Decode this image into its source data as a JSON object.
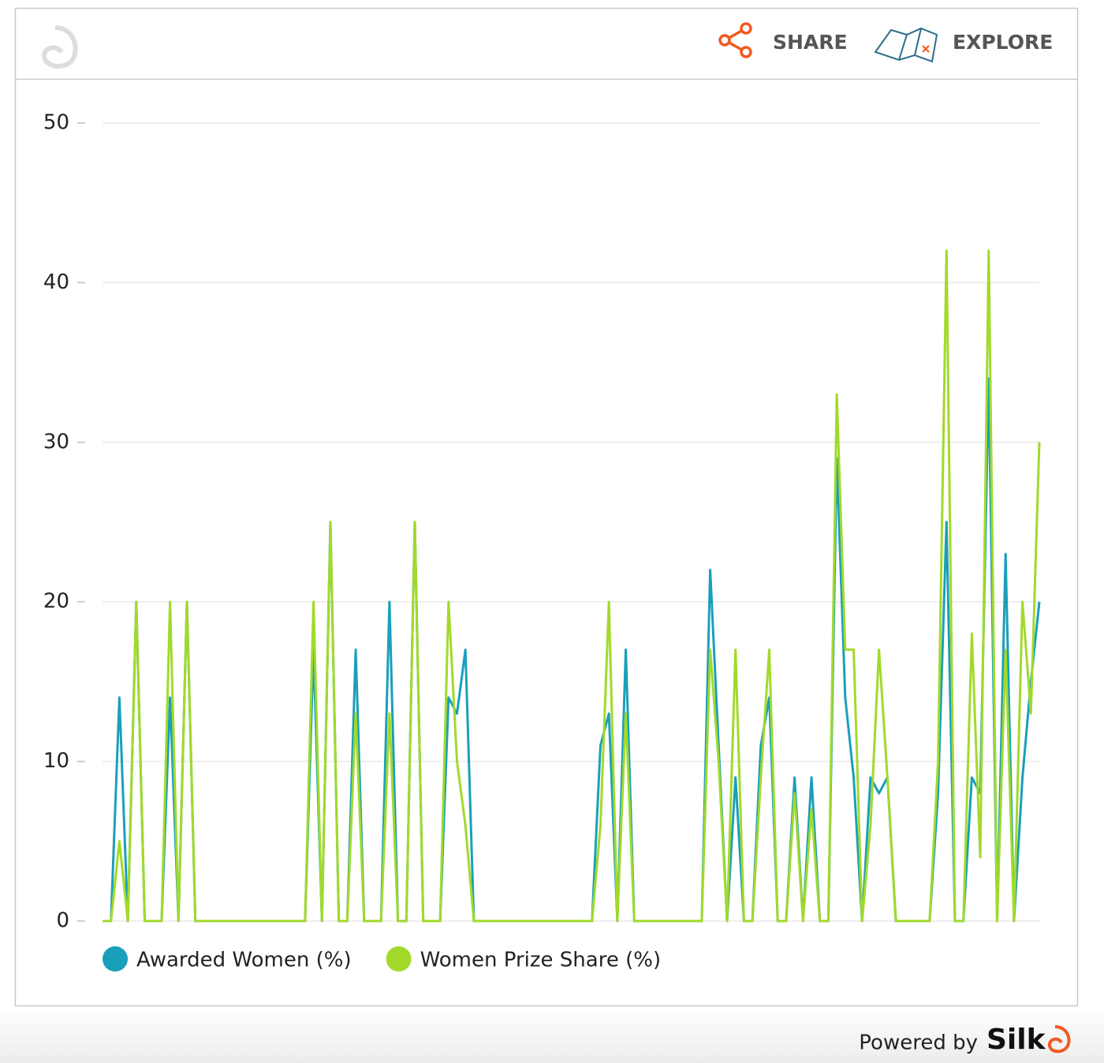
{
  "chart_data": {
    "type": "line",
    "ylim": [
      0,
      50
    ],
    "yticks": [
      0,
      10,
      20,
      30,
      40,
      50
    ],
    "grid": true,
    "series": [
      {
        "name": "Awarded Women (%)",
        "color": "#1a9fba",
        "values": [
          0,
          0,
          14,
          0,
          20,
          0,
          0,
          0,
          14,
          0,
          20,
          0,
          0,
          0,
          0,
          0,
          0,
          0,
          0,
          0,
          0,
          0,
          0,
          0,
          0,
          17,
          0,
          25,
          0,
          0,
          17,
          0,
          0,
          0,
          20,
          0,
          0,
          25,
          0,
          0,
          0,
          14,
          13,
          17,
          0,
          0,
          0,
          0,
          0,
          0,
          0,
          0,
          0,
          0,
          0,
          0,
          0,
          0,
          0,
          11,
          13,
          0,
          17,
          0,
          0,
          0,
          0,
          0,
          0,
          0,
          0,
          0,
          22,
          11,
          0,
          9,
          0,
          0,
          11,
          14,
          0,
          0,
          9,
          0,
          9,
          0,
          0,
          29,
          14,
          9,
          0,
          9,
          8,
          9,
          0,
          0,
          0,
          0,
          0,
          8,
          25,
          0,
          0,
          9,
          8,
          34,
          0,
          23,
          0,
          9,
          15,
          20
        ]
      },
      {
        "name": "Women Prize Share (%)",
        "color": "#a3d92b",
        "values": [
          0,
          0,
          5,
          0,
          20,
          0,
          0,
          0,
          20,
          0,
          20,
          0,
          0,
          0,
          0,
          0,
          0,
          0,
          0,
          0,
          0,
          0,
          0,
          0,
          0,
          20,
          0,
          25,
          0,
          0,
          13,
          0,
          0,
          0,
          13,
          0,
          0,
          25,
          0,
          0,
          0,
          20,
          10,
          6,
          0,
          0,
          0,
          0,
          0,
          0,
          0,
          0,
          0,
          0,
          0,
          0,
          0,
          0,
          0,
          6,
          20,
          0,
          13,
          0,
          0,
          0,
          0,
          0,
          0,
          0,
          0,
          0,
          17,
          10,
          0,
          17,
          0,
          0,
          9,
          17,
          0,
          0,
          8,
          0,
          7,
          0,
          0,
          33,
          17,
          17,
          0,
          6,
          17,
          9,
          0,
          0,
          0,
          0,
          0,
          10,
          42,
          0,
          0,
          18,
          4,
          42,
          0,
          17,
          0,
          20,
          13,
          30
        ]
      }
    ]
  },
  "header": {
    "share": "SHARE",
    "explore": "EXPLORE"
  },
  "footer": {
    "powered_by": "Powered by",
    "brand": "Silk"
  }
}
